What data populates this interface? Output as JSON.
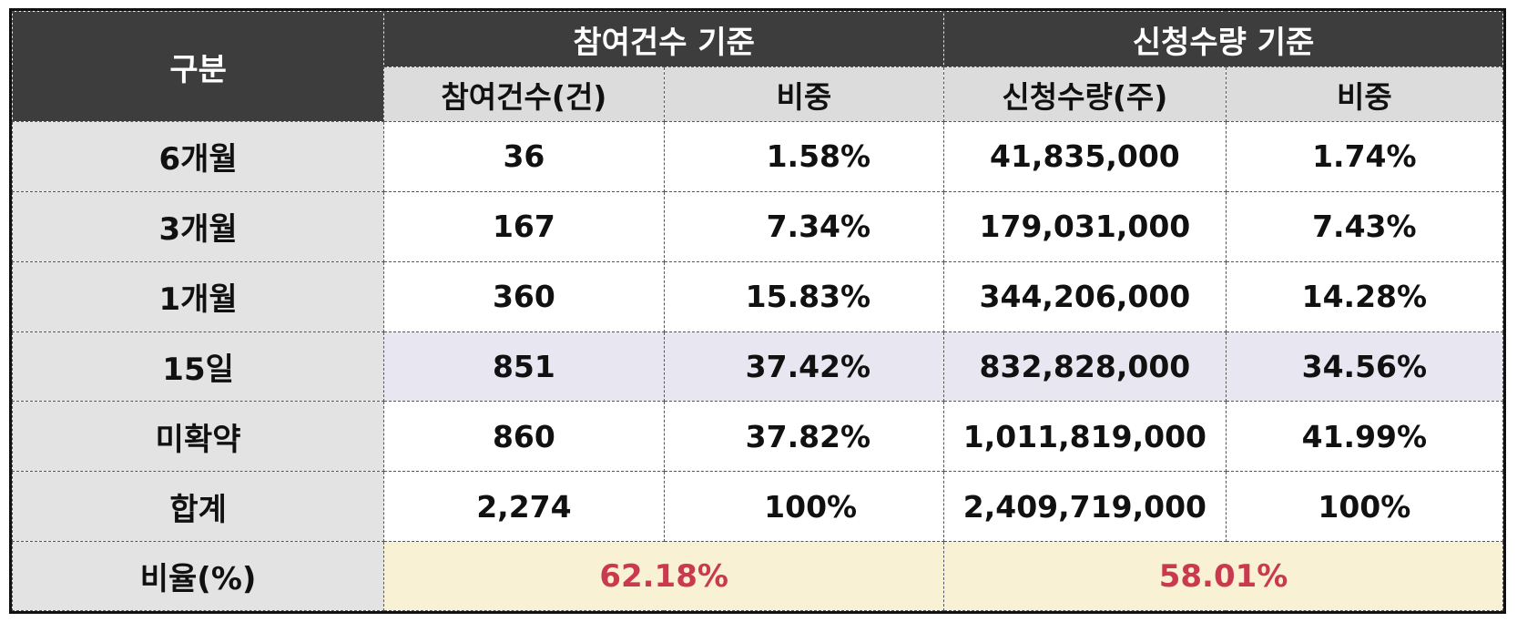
{
  "header": {
    "category": "구분",
    "group_count": "참여건수 기준",
    "group_qty": "신청수량 기준",
    "col_count": "참여건수(건)",
    "col_count_share": "비중",
    "col_qty": "신청수량(주)",
    "col_qty_share": "비중"
  },
  "rows": [
    {
      "label": "6개월",
      "count": "36",
      "count_share": "1.58%",
      "qty": "41,835,000",
      "qty_share": "1.74%"
    },
    {
      "label": "3개월",
      "count": "167",
      "count_share": "7.34%",
      "qty": "179,031,000",
      "qty_share": "7.43%"
    },
    {
      "label": "1개월",
      "count": "360",
      "count_share": "15.83%",
      "qty": "344,206,000",
      "qty_share": "14.28%"
    },
    {
      "label": "15일",
      "count": "851",
      "count_share": "37.42%",
      "qty": "832,828,000",
      "qty_share": "34.56%"
    },
    {
      "label": "미확약",
      "count": "860",
      "count_share": "37.82%",
      "qty": "1,011,819,000",
      "qty_share": "41.99%"
    },
    {
      "label": "합계",
      "count": "2,274",
      "count_share": "100%",
      "qty": "2,409,719,000",
      "qty_share": "100%"
    }
  ],
  "ratio": {
    "label": "비율(%)",
    "count_ratio": "62.18%",
    "qty_ratio": "58.01%"
  },
  "colors": {
    "header_dark": "#3d3d3d",
    "header_light": "#dcdcdc",
    "highlight_row": "#e8e6f0",
    "ratio_bg": "#f9f1d4",
    "ratio_text": "#c93a4f"
  }
}
